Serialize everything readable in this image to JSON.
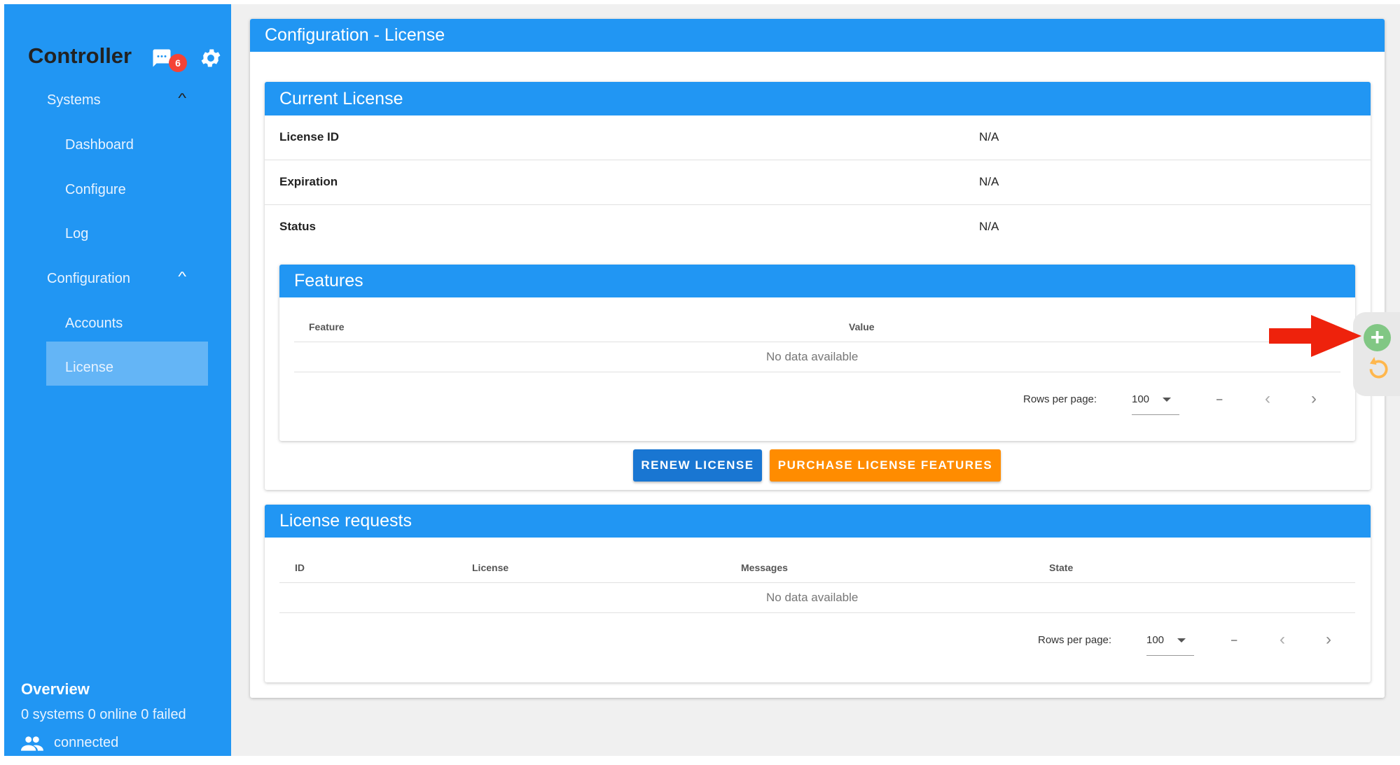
{
  "sidebar": {
    "brand": "Controller",
    "notification_count": "6",
    "items": [
      {
        "label": "Systems"
      },
      {
        "label": "Dashboard"
      },
      {
        "label": "Configure"
      },
      {
        "label": "Log"
      },
      {
        "label": "Configuration"
      },
      {
        "label": "Accounts"
      },
      {
        "label": "License"
      }
    ],
    "overview_title": "Overview",
    "overview_stats": "0 systems 0 online 0 failed",
    "connection": "connected"
  },
  "main": {
    "title": "Configuration - License",
    "current_license": {
      "title": "Current License",
      "rows": [
        {
          "label": "License ID",
          "value": "N/A"
        },
        {
          "label": "Expiration",
          "value": "N/A"
        },
        {
          "label": "Status",
          "value": "N/A"
        }
      ]
    },
    "features": {
      "title": "Features",
      "columns": [
        "Feature",
        "Value"
      ],
      "empty": "No data available",
      "rows_per_page_label": "Rows per page:",
      "rows_per_page": "100",
      "range": "–"
    },
    "buttons": {
      "renew": "RENEW LICENSE",
      "purchase": "PURCHASE LICENSE FEATURES"
    },
    "requests": {
      "title": "License requests",
      "columns": [
        "ID",
        "License",
        "Messages",
        "State"
      ],
      "empty": "No data available",
      "rows_per_page_label": "Rows per page:",
      "rows_per_page": "100",
      "range": "–"
    }
  },
  "colors": {
    "primary": "#2196f3",
    "renew": "#1976d2",
    "purchase": "#ff8c00",
    "add": "#81c784",
    "refresh": "#ffb74d",
    "arrow": "#ee220c"
  }
}
